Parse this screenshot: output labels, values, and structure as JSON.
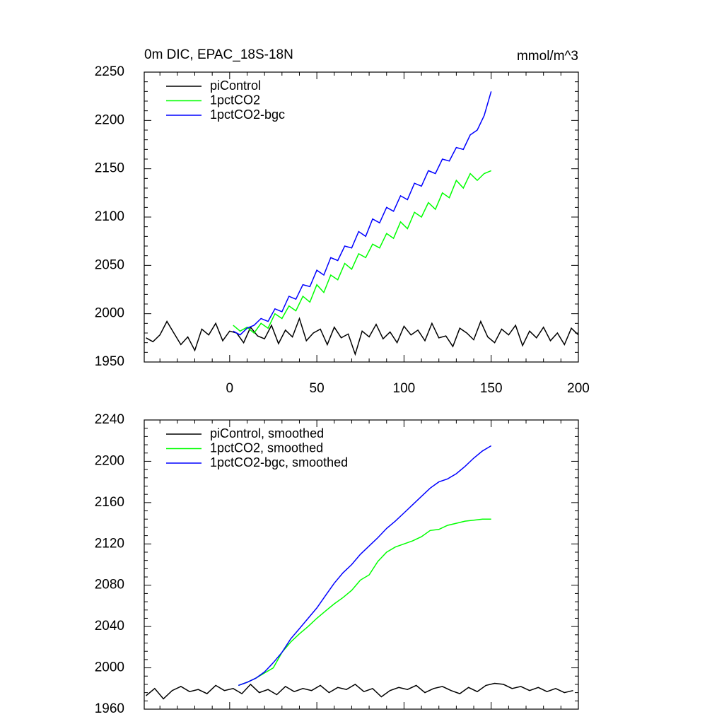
{
  "chart_data": [
    {
      "type": "line",
      "title": "0m DIC, EPAC_18S-18N",
      "subtitle": "mmol/m^3",
      "xlim": [
        -49,
        200
      ],
      "xticks": [
        0,
        50,
        100,
        150,
        200
      ],
      "ylim": [
        1950,
        2250
      ],
      "yticks": [
        1950,
        2000,
        2050,
        2100,
        2150,
        2200,
        2250
      ],
      "legend": "upper left",
      "series": [
        {
          "name": "piControl",
          "color": "#000000",
          "x": [
            -48,
            -44,
            -40,
            -36,
            -32,
            -28,
            -24,
            -20,
            -16,
            -12,
            -8,
            -4,
            0,
            4,
            8,
            12,
            16,
            20,
            24,
            28,
            32,
            36,
            40,
            44,
            48,
            52,
            56,
            60,
            64,
            68,
            72,
            76,
            80,
            84,
            88,
            92,
            96,
            100,
            104,
            108,
            112,
            116,
            120,
            124,
            128,
            132,
            136,
            140,
            144,
            148,
            152,
            156,
            160,
            164,
            168,
            172,
            176,
            180,
            184,
            188,
            192,
            196,
            200
          ],
          "values": [
            1975,
            1971,
            1978,
            1992,
            1980,
            1968,
            1976,
            1962,
            1984,
            1978,
            1990,
            1972,
            1982,
            1980,
            1970,
            1986,
            1977,
            1974,
            1988,
            1969,
            1983,
            1976,
            1995,
            1972,
            1980,
            1984,
            1968,
            1986,
            1975,
            1979,
            1958,
            1982,
            1976,
            1989,
            1974,
            1981,
            1970,
            1987,
            1978,
            1983,
            1972,
            1990,
            1975,
            1977,
            1966,
            1985,
            1980,
            1973,
            1992,
            1976,
            1970,
            1984,
            1978,
            1988,
            1967,
            1982,
            1975,
            1986,
            1972,
            1980,
            1968,
            1985,
            1978
          ]
        },
        {
          "name": "1pctCO2",
          "color": "#00ff00",
          "x": [
            2,
            6,
            10,
            14,
            18,
            22,
            26,
            30,
            34,
            38,
            42,
            46,
            50,
            54,
            58,
            62,
            66,
            70,
            74,
            78,
            82,
            86,
            90,
            94,
            98,
            102,
            106,
            110,
            114,
            118,
            122,
            126,
            130,
            134,
            138,
            142,
            146,
            150
          ],
          "values": [
            1988,
            1982,
            1986,
            1980,
            1990,
            1985,
            2000,
            1995,
            2008,
            2003,
            2018,
            2012,
            2030,
            2022,
            2040,
            2035,
            2052,
            2046,
            2062,
            2058,
            2072,
            2068,
            2083,
            2078,
            2095,
            2088,
            2105,
            2100,
            2115,
            2108,
            2125,
            2120,
            2138,
            2130,
            2145,
            2138,
            2145,
            2148
          ]
        },
        {
          "name": "1pctCO2-bgc",
          "color": "#0000ff",
          "x": [
            2,
            6,
            10,
            14,
            18,
            22,
            26,
            30,
            34,
            38,
            42,
            46,
            50,
            54,
            58,
            62,
            66,
            70,
            74,
            78,
            82,
            86,
            90,
            94,
            98,
            102,
            106,
            110,
            114,
            118,
            122,
            126,
            130,
            134,
            138,
            142,
            146,
            150
          ],
          "values": [
            1982,
            1978,
            1985,
            1988,
            1995,
            1992,
            2005,
            2002,
            2018,
            2015,
            2030,
            2028,
            2045,
            2040,
            2058,
            2055,
            2070,
            2068,
            2085,
            2080,
            2098,
            2094,
            2110,
            2106,
            2122,
            2118,
            2135,
            2132,
            2148,
            2145,
            2160,
            2158,
            2172,
            2170,
            2185,
            2190,
            2205,
            2230
          ]
        }
      ]
    },
    {
      "type": "line",
      "xlim": [
        -49,
        200
      ],
      "xticks": [
        0,
        50,
        100,
        150,
        200
      ],
      "ylim": [
        1960,
        2240
      ],
      "yticks": [
        1960,
        2000,
        2040,
        2080,
        2120,
        2160,
        2200,
        2240
      ],
      "legend": "upper left",
      "series": [
        {
          "name": "piControl, smoothed",
          "color": "#000000",
          "x": [
            -48,
            -43,
            -38,
            -33,
            -28,
            -23,
            -18,
            -13,
            -8,
            -3,
            2,
            7,
            12,
            17,
            22,
            27,
            32,
            37,
            42,
            47,
            52,
            57,
            62,
            67,
            72,
            77,
            82,
            87,
            92,
            97,
            102,
            107,
            112,
            117,
            122,
            127,
            132,
            137,
            142,
            147,
            152,
            157,
            162,
            167,
            172,
            177,
            182,
            187,
            192,
            197
          ],
          "values": [
            1973,
            1980,
            1970,
            1978,
            1982,
            1977,
            1979,
            1975,
            1983,
            1978,
            1980,
            1975,
            1984,
            1976,
            1979,
            1974,
            1982,
            1977,
            1980,
            1978,
            1983,
            1976,
            1981,
            1979,
            1984,
            1977,
            1980,
            1972,
            1978,
            1981,
            1979,
            1983,
            1976,
            1980,
            1982,
            1978,
            1975,
            1981,
            1977,
            1983,
            1985,
            1984,
            1980,
            1982,
            1978,
            1981,
            1977,
            1980,
            1976,
            1978
          ]
        },
        {
          "name": "1pctCO2, smoothed",
          "color": "#00ff00",
          "x": [
            5,
            10,
            15,
            20,
            25,
            30,
            35,
            40,
            45,
            50,
            55,
            60,
            65,
            70,
            75,
            80,
            85,
            90,
            95,
            100,
            105,
            110,
            115,
            120,
            125,
            130,
            135,
            140,
            145,
            150
          ],
          "values": [
            1983,
            1986,
            1990,
            1995,
            2000,
            2015,
            2025,
            2033,
            2040,
            2048,
            2055,
            2062,
            2068,
            2075,
            2085,
            2090,
            2103,
            2112,
            2117,
            2120,
            2123,
            2127,
            2133,
            2134,
            2138,
            2140,
            2142,
            2143,
            2144,
            2144
          ]
        },
        {
          "name": "1pctCO2-bgc, smoothed",
          "color": "#0000ff",
          "x": [
            5,
            10,
            15,
            20,
            25,
            30,
            35,
            40,
            45,
            50,
            55,
            60,
            65,
            70,
            75,
            80,
            85,
            90,
            95,
            100,
            105,
            110,
            115,
            120,
            125,
            130,
            135,
            140,
            145,
            150
          ],
          "values": [
            1983,
            1986,
            1990,
            1996,
            2005,
            2015,
            2028,
            2038,
            2048,
            2058,
            2070,
            2082,
            2092,
            2100,
            2110,
            2118,
            2126,
            2135,
            2142,
            2150,
            2158,
            2166,
            2174,
            2180,
            2183,
            2188,
            2195,
            2203,
            2210,
            2215
          ]
        }
      ]
    }
  ]
}
